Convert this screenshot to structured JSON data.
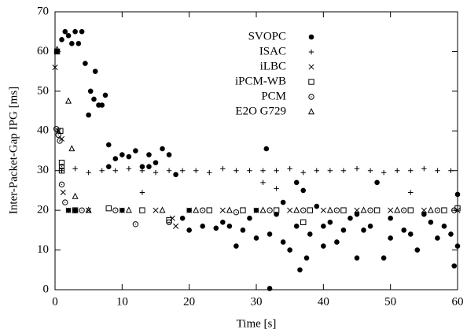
{
  "chart_data": {
    "type": "scatter",
    "xlabel": "Time [s]",
    "ylabel": "Inter-Packet-Gap IPG [ms]",
    "xlim": [
      0,
      60
    ],
    "ylim": [
      0,
      70
    ],
    "xticks": [
      0,
      10,
      20,
      30,
      40,
      50,
      60
    ],
    "yticks": [
      0,
      10,
      20,
      30,
      40,
      50,
      60,
      70
    ],
    "legend": "top",
    "series": [
      {
        "name": "SVOPC",
        "marker": "circle",
        "color": "#000000",
        "x": [
          0.3,
          1,
          1.5,
          2,
          2.5,
          3,
          3.5,
          4,
          4.5,
          5,
          5.3,
          5.8,
          6,
          6.5,
          7,
          7.5,
          8,
          9,
          10,
          11,
          12,
          13,
          14,
          15,
          16,
          17,
          18,
          31.5,
          32,
          33,
          34,
          35,
          36,
          36.5,
          37,
          37.5,
          38,
          39,
          40,
          42,
          44,
          45,
          46,
          48,
          49,
          50,
          52,
          54,
          56,
          58,
          59,
          59.5,
          60,
          60,
          20,
          22,
          24,
          26,
          28,
          30,
          32,
          34,
          36,
          40,
          45,
          50,
          55,
          30,
          20,
          10,
          2,
          3,
          8,
          14,
          19,
          25,
          27,
          29,
          41,
          43,
          47,
          53,
          57
        ],
        "values": [
          60,
          63,
          65,
          64,
          62,
          65,
          62,
          65,
          57,
          44,
          50,
          48,
          55,
          46.5,
          46.5,
          49,
          36.5,
          33,
          34,
          33.5,
          35,
          31,
          34,
          32,
          35.5,
          34,
          29,
          35.5,
          0.3,
          19,
          22,
          10,
          27,
          5,
          25,
          8,
          14,
          21,
          16,
          12,
          18,
          8,
          15,
          27,
          8,
          13,
          15,
          10,
          17,
          16,
          14,
          6,
          24,
          11,
          15,
          16,
          15.5,
          16,
          15,
          13,
          14,
          12,
          16,
          11,
          19,
          18,
          19,
          20,
          20,
          20,
          20,
          20,
          31,
          31,
          18,
          17,
          11,
          18,
          17,
          15,
          16,
          14,
          13
        ]
      },
      {
        "name": "ISAC",
        "marker": "plus",
        "color": "#000000",
        "x": [
          1,
          3,
          5,
          7,
          9,
          11,
          13,
          15,
          17,
          19,
          21,
          23,
          25,
          27,
          29,
          31,
          33,
          35,
          37,
          39,
          41,
          43,
          45,
          47,
          49,
          51,
          53,
          55,
          57,
          59,
          13,
          33,
          53,
          31
        ],
        "values": [
          30,
          30.5,
          29.5,
          30,
          30,
          30.5,
          30,
          29.5,
          30,
          30,
          30,
          29.5,
          30.5,
          30,
          30,
          30,
          30,
          30.5,
          29.5,
          30,
          30,
          30,
          30.5,
          30,
          29.5,
          30,
          30,
          30.5,
          30,
          30,
          24.5,
          25.5,
          24.5,
          27
        ]
      },
      {
        "name": "iLBC",
        "marker": "cross",
        "color": "#000000",
        "x": [
          0,
          1.2,
          2,
          5,
          10,
          15,
          17.5,
          18,
          20,
          25,
          30,
          35,
          40,
          45,
          50,
          55,
          60,
          0.5,
          1
        ],
        "values": [
          56,
          24.5,
          20,
          20,
          20,
          20,
          18,
          16,
          20,
          20,
          20,
          20,
          20,
          20,
          20,
          20,
          20,
          40,
          38
        ]
      },
      {
        "name": "iPCM-WB",
        "marker": "square",
        "color": "#000000",
        "x": [
          0.3,
          0.8,
          1,
          1,
          3,
          8,
          13,
          17,
          23,
          28,
          33,
          37,
          38,
          43,
          48,
          53,
          58,
          60
        ],
        "values": [
          60,
          40,
          32,
          30,
          20,
          20.5,
          20,
          17.5,
          20,
          20,
          20,
          17,
          20,
          20,
          20,
          20,
          20,
          20.5
        ]
      },
      {
        "name": "PCM",
        "marker": "dotcircle",
        "color": "#000000",
        "x": [
          0.2,
          0.5,
          0.7,
          1,
          1,
          1.5,
          4,
          9,
          12,
          17,
          22,
          27,
          32,
          37,
          42,
          47,
          52,
          57,
          59.5
        ],
        "values": [
          40.5,
          39,
          37.5,
          31,
          26.5,
          22,
          20,
          20,
          16.5,
          17,
          20,
          19.5,
          20,
          20,
          20,
          20,
          20,
          20,
          20
        ]
      },
      {
        "name": "E2O G729",
        "marker": "triangle",
        "color": "#000000",
        "x": [
          0.3,
          2,
          2.5,
          3,
          5,
          11,
          16,
          21,
          26,
          31,
          36,
          41,
          46,
          51,
          56
        ],
        "values": [
          60.5,
          47.5,
          35.5,
          23.5,
          20,
          20,
          20,
          20,
          20,
          20,
          20,
          20,
          20,
          20,
          20
        ]
      }
    ]
  }
}
